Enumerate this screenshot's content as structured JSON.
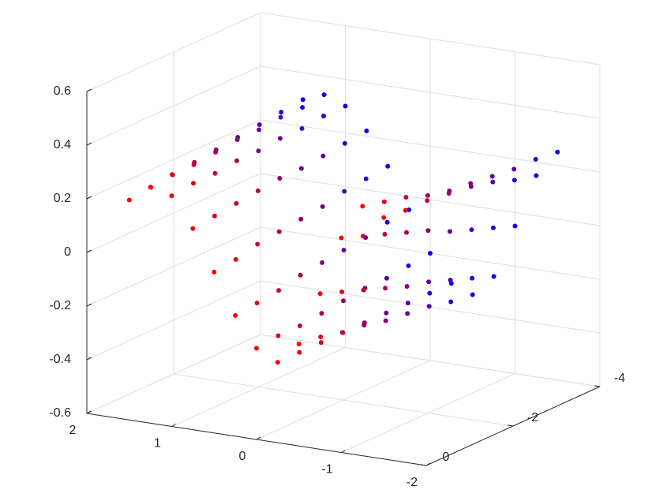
{
  "chart_data": {
    "type": "scatter3d",
    "x": [
      1.5,
      1.25,
      1,
      0.75,
      0.5,
      0.25,
      0,
      -0.25,
      -0.5,
      -0.75,
      -1,
      -1.25,
      -1.5
    ],
    "series": [
      {
        "y": 0,
        "color": "#ff0000",
        "values": [
          0.22,
          0.28,
          0.26,
          0.15,
          0,
          -0.15,
          -0.26,
          -0.3,
          -0.22,
          -0.02,
          0.2,
          0.33,
          0.3
        ]
      },
      {
        "y": -0.5,
        "color": "#e6001a",
        "values": [
          0.23,
          0.29,
          0.27,
          0.16,
          0.01,
          -0.14,
          -0.25,
          -0.3,
          -0.23,
          -0.05,
          0.17,
          0.31,
          0.29
        ]
      },
      {
        "y": -1,
        "color": "#c80037",
        "values": [
          0.24,
          0.29,
          0.27,
          0.17,
          0.03,
          -0.13,
          -0.25,
          -0.3,
          -0.25,
          -0.08,
          0.14,
          0.29,
          0.29
        ]
      },
      {
        "y": -1.5,
        "color": "#aa0055",
        "values": [
          0.25,
          0.3,
          0.28,
          0.18,
          0.04,
          -0.11,
          -0.24,
          -0.3,
          -0.26,
          -0.11,
          0.11,
          0.26,
          0.28
        ]
      },
      {
        "y": -2,
        "color": "#8c0073",
        "values": [
          0.26,
          0.31,
          0.28,
          0.19,
          0.05,
          -0.1,
          -0.23,
          -0.3,
          -0.28,
          -0.14,
          0.08,
          0.24,
          0.28
        ]
      },
      {
        "y": -2.5,
        "color": "#6e0091",
        "values": [
          0.27,
          0.31,
          0.29,
          0.19,
          0.06,
          -0.09,
          -0.22,
          -0.3,
          -0.29,
          -0.16,
          0.04,
          0.22,
          0.27
        ]
      },
      {
        "y": -3,
        "color": "#5000b0",
        "values": [
          0.28,
          0.32,
          0.29,
          0.2,
          0.08,
          -0.08,
          -0.22,
          -0.3,
          -0.3,
          -0.19,
          0.01,
          0.2,
          0.26
        ]
      },
      {
        "y": -3.5,
        "color": "#2d00d2",
        "values": [
          0.29,
          0.32,
          0.3,
          0.21,
          0.09,
          -0.06,
          -0.21,
          -0.3,
          -0.32,
          -0.22,
          -0.02,
          0.17,
          0.26
        ]
      },
      {
        "y": -4,
        "color": "#0a00f5",
        "values": [
          0.3,
          0.33,
          0.3,
          0.22,
          0.1,
          -0.05,
          -0.2,
          -0.3,
          -0.33,
          -0.25,
          -0.05,
          0.15,
          0.25
        ]
      }
    ],
    "xlim": [
      -2,
      2
    ],
    "ylim": [
      -4,
      0
    ],
    "zlim": [
      -0.6,
      0.6
    ],
    "xticks": [
      -2,
      -1,
      0,
      1,
      2
    ],
    "yticks": [
      -4,
      -2,
      0
    ],
    "zticks": [
      -0.6,
      -0.4,
      -0.2,
      0,
      0.2,
      0.4,
      0.6
    ],
    "grid": true
  }
}
